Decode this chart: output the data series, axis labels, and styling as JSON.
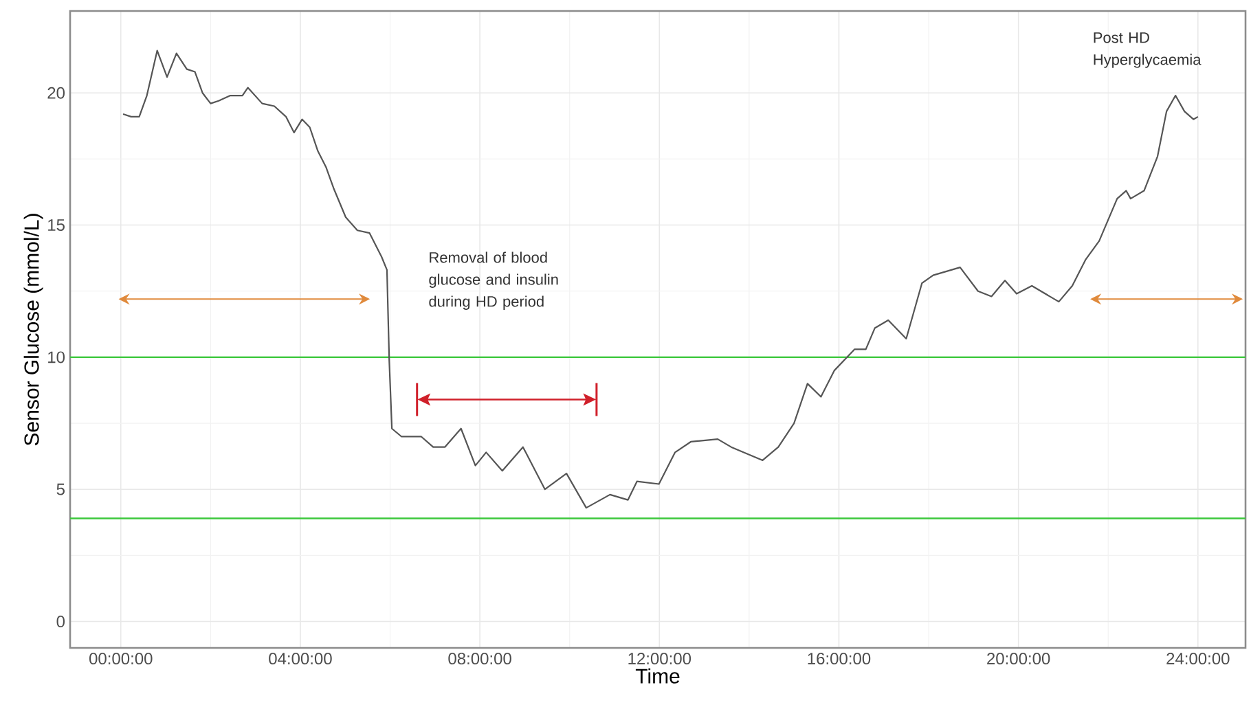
{
  "chart_data": {
    "type": "line",
    "xlabel": "Time",
    "ylabel": "Sensor Glucose (mmol/L)",
    "x": [
      0.05,
      0.23,
      0.41,
      0.58,
      0.81,
      1.03,
      1.24,
      1.47,
      1.65,
      1.82,
      2.0,
      2.18,
      2.44,
      2.71,
      2.83,
      3.15,
      3.42,
      3.68,
      3.86,
      4.04,
      4.21,
      4.39,
      4.57,
      4.74,
      5.01,
      5.27,
      5.54,
      5.81,
      5.93,
      5.98,
      6.04,
      6.25,
      6.69,
      6.96,
      7.22,
      7.58,
      7.9,
      8.14,
      8.5,
      8.96,
      9.45,
      9.93,
      10.37,
      10.9,
      11.3,
      11.5,
      11.99,
      12.35,
      12.7,
      13.3,
      13.6,
      14.3,
      14.65,
      15.0,
      15.3,
      15.6,
      15.9,
      16.35,
      16.6,
      16.8,
      17.1,
      17.5,
      17.85,
      18.1,
      18.7,
      19.1,
      19.4,
      19.7,
      19.96,
      20.3,
      20.6,
      20.9,
      21.2,
      21.5,
      21.8,
      22.2,
      22.4,
      22.5,
      22.8,
      23.1,
      23.3,
      23.5,
      23.7,
      23.9,
      24.0
    ],
    "series": [
      {
        "color": "#555555",
        "values": [
          19.2,
          19.1,
          19.1,
          19.9,
          21.6,
          20.6,
          21.5,
          20.9,
          20.8,
          20.0,
          19.6,
          19.7,
          19.9,
          19.9,
          20.2,
          19.6,
          19.5,
          19.1,
          18.5,
          19.0,
          18.7,
          17.8,
          17.2,
          16.4,
          15.3,
          14.8,
          14.7,
          13.8,
          13.3,
          9.9,
          7.3,
          7.0,
          7.0,
          6.6,
          6.6,
          7.3,
          5.9,
          6.4,
          5.7,
          6.6,
          5.0,
          5.6,
          4.3,
          4.8,
          4.6,
          5.3,
          5.2,
          6.4,
          6.8,
          6.9,
          6.6,
          6.1,
          6.6,
          7.5,
          9.0,
          8.5,
          9.5,
          10.3,
          10.3,
          11.1,
          11.4,
          10.7,
          12.8,
          13.1,
          13.4,
          12.5,
          12.3,
          12.9,
          12.4,
          12.7,
          12.4,
          12.1,
          12.7,
          13.7,
          14.4,
          16.0,
          16.3,
          16.0,
          16.3,
          17.6,
          19.3,
          19.9,
          19.3,
          19.0,
          19.1
        ]
      }
    ],
    "xlim": [
      -1.13,
      25.06
    ],
    "ylim": [
      -1,
      23.1
    ],
    "xticks": [
      {
        "value": 0,
        "label": "00:00:00"
      },
      {
        "value": 4,
        "label": "04:00:00"
      },
      {
        "value": 8,
        "label": "08:00:00"
      },
      {
        "value": 12,
        "label": "12:00:00"
      },
      {
        "value": 16,
        "label": "16:00:00"
      },
      {
        "value": 20,
        "label": "20:00:00"
      },
      {
        "value": 24,
        "label": "24:00:00"
      }
    ],
    "yticks": [
      0,
      5,
      10,
      15,
      20
    ],
    "grid": true,
    "ref_lines": [
      {
        "axis": "y",
        "value": 10,
        "color": "#3cc83c"
      },
      {
        "axis": "y",
        "value": 3.9,
        "color": "#3cc83c"
      }
    ],
    "annotations": [
      "Removal of blood glucose and insulin during HD period",
      "Post HD Hyperglycaemia"
    ]
  }
}
